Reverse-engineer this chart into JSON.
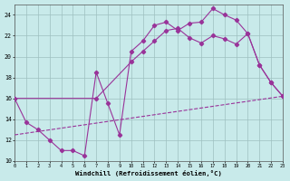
{
  "background_color": "#c8eaea",
  "grid_color": "#9ec0c0",
  "line_color": "#993399",
  "xlim": [
    0,
    23
  ],
  "ylim": [
    10,
    25
  ],
  "xtick_vals": [
    0,
    1,
    2,
    3,
    4,
    5,
    6,
    7,
    8,
    9,
    10,
    11,
    12,
    13,
    14,
    15,
    16,
    17,
    18,
    19,
    20,
    21,
    22,
    23
  ],
  "ytick_vals": [
    10,
    12,
    14,
    16,
    18,
    20,
    22,
    24
  ],
  "xlabel": "Windchill (Refroidissement éolien,°C)",
  "line1_x": [
    0,
    1,
    2,
    3,
    4,
    5,
    6,
    7,
    8,
    9,
    10,
    11,
    12,
    13,
    14,
    15,
    16,
    17,
    18,
    19,
    20,
    21,
    22,
    23
  ],
  "line1_y": [
    16,
    13.7,
    13.0,
    12.0,
    11.0,
    11.0,
    10.5,
    18.5,
    15.5,
    12.5,
    20.5,
    21.5,
    23.0,
    23.3,
    22.5,
    23.2,
    23.3,
    24.6,
    24.0,
    23.5,
    22.2,
    19.2,
    17.5,
    16.2
  ],
  "line2_x": [
    0,
    7,
    10,
    11,
    12,
    13,
    14,
    15,
    16,
    17,
    18,
    19,
    20,
    21,
    22,
    23
  ],
  "line2_y": [
    16,
    16.0,
    19.5,
    20.5,
    21.5,
    22.5,
    22.7,
    21.8,
    21.3,
    22.0,
    21.7,
    21.2,
    22.2,
    19.2,
    17.5,
    16.2
  ],
  "line3_x": [
    0,
    23
  ],
  "line3_y": [
    12.5,
    16.2
  ]
}
